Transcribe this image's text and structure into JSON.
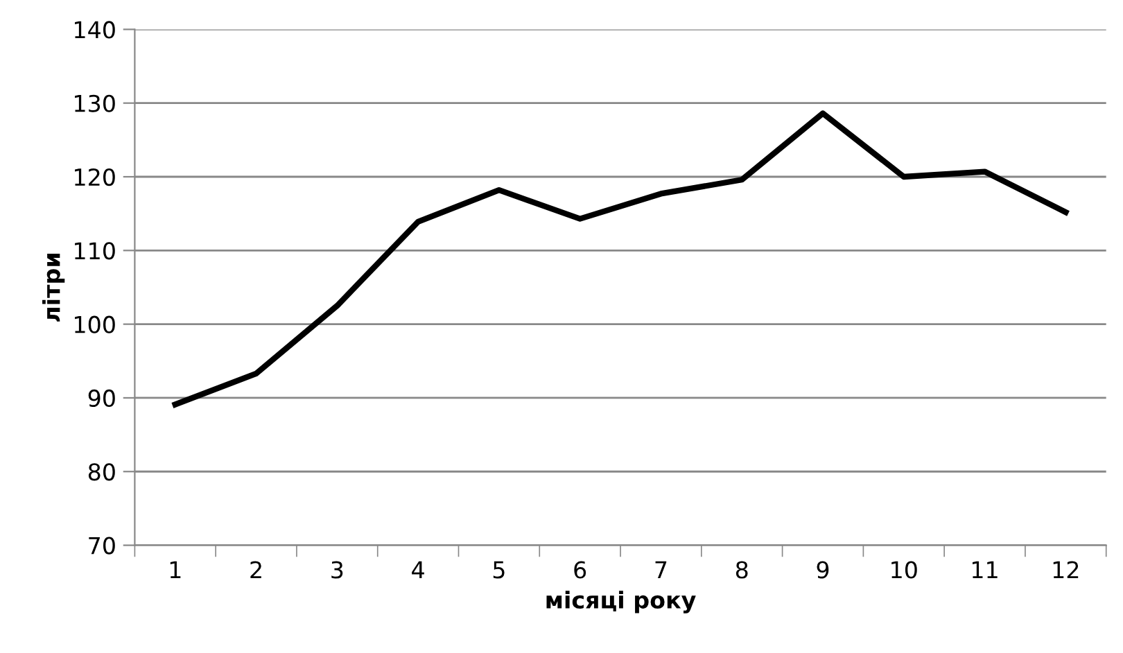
{
  "chart_data": {
    "type": "line",
    "xlabel": "місяці року",
    "ylabel": "літри",
    "categories": [
      "1",
      "2",
      "3",
      "4",
      "5",
      "6",
      "7",
      "8",
      "9",
      "10",
      "11",
      "12"
    ],
    "series": [
      {
        "color": "#000000",
        "values": [
          89.1,
          93.3,
          102.5,
          113.9,
          118.2,
          114.3,
          117.7,
          119.6,
          128.6,
          120.0,
          120.7,
          115.2
        ]
      }
    ],
    "ylim": [
      70,
      140
    ],
    "yticks": [
      70,
      80,
      90,
      100,
      110,
      120,
      130,
      140
    ],
    "grid": "y",
    "legend": false,
    "marker": "none",
    "line_style": "solid"
  }
}
